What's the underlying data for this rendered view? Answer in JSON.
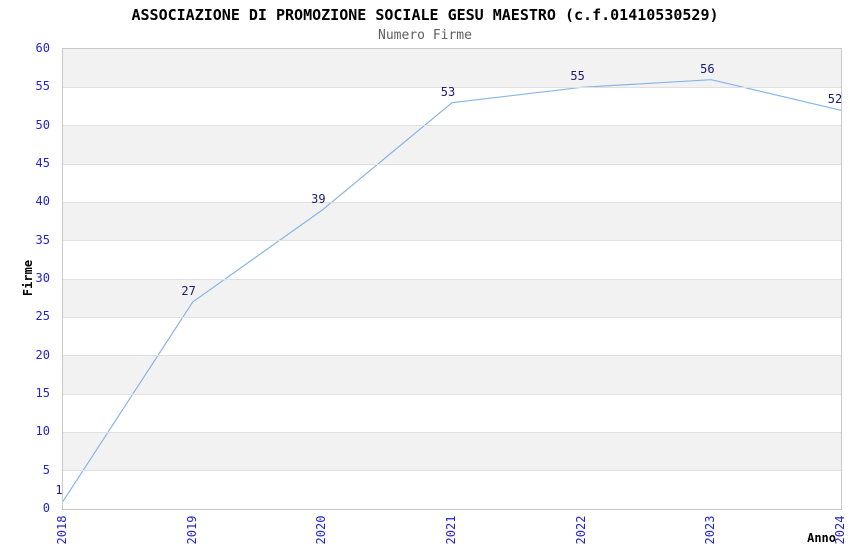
{
  "title": "ASSOCIAZIONE DI PROMOZIONE SOCIALE GESU MAESTRO (c.f.01410530529)",
  "subtitle": "Numero Firme",
  "chart_data": {
    "type": "line",
    "categories": [
      "2018",
      "2019",
      "2020",
      "2021",
      "2022",
      "2023",
      "2024"
    ],
    "values": [
      1,
      27,
      39,
      53,
      55,
      56,
      52
    ],
    "title": "Numero Firme",
    "xlabel": "Anno",
    "ylabel": "Firme",
    "ylim": [
      0,
      60
    ],
    "ytick_step": 5,
    "grid": "horizontal-only",
    "legend": "none",
    "data_labels_shown": true,
    "colors": {
      "line": "#88b4e8",
      "tick_label": "#2424cc",
      "data_label": "#1b1b70",
      "band": "#f2f2f2",
      "gridline": "#e0e0e0",
      "plot_border": "#c9c9c9",
      "title": "#000000",
      "subtitle": "#5f5f5f"
    }
  }
}
